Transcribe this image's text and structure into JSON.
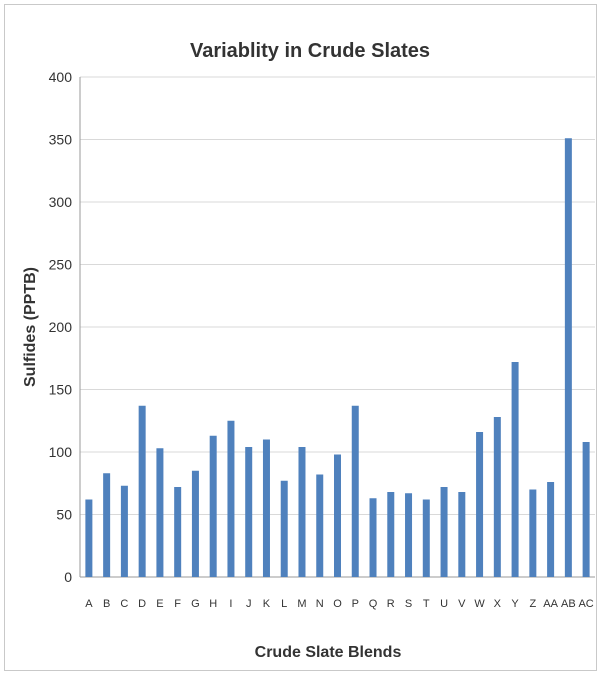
{
  "chart_data": {
    "type": "bar",
    "title": "Variablity in Crude Slates",
    "xlabel": "Crude Slate Blends",
    "ylabel": "Sulfides (PPTB)",
    "ylim": [
      0,
      400
    ],
    "yticks": [
      0,
      50,
      100,
      150,
      200,
      250,
      300,
      350,
      400
    ],
    "grid": true,
    "legend": "none",
    "bar_color": "#4F81BD",
    "categories": [
      "A",
      "B",
      "C",
      "D",
      "E",
      "F",
      "G",
      "H",
      "I",
      "J",
      "K",
      "L",
      "M",
      "N",
      "O",
      "P",
      "Q",
      "R",
      "S",
      "T",
      "U",
      "V",
      "W",
      "X",
      "Y",
      "Z",
      "AA",
      "AB",
      "AC"
    ],
    "series": [
      {
        "values": [
          62,
          83,
          73,
          137,
          103,
          72,
          85,
          113,
          125,
          104,
          110,
          77,
          104,
          82,
          98,
          137,
          63,
          68,
          67,
          62,
          72,
          68,
          116,
          128,
          172,
          70,
          76,
          351,
          108
        ]
      }
    ]
  }
}
